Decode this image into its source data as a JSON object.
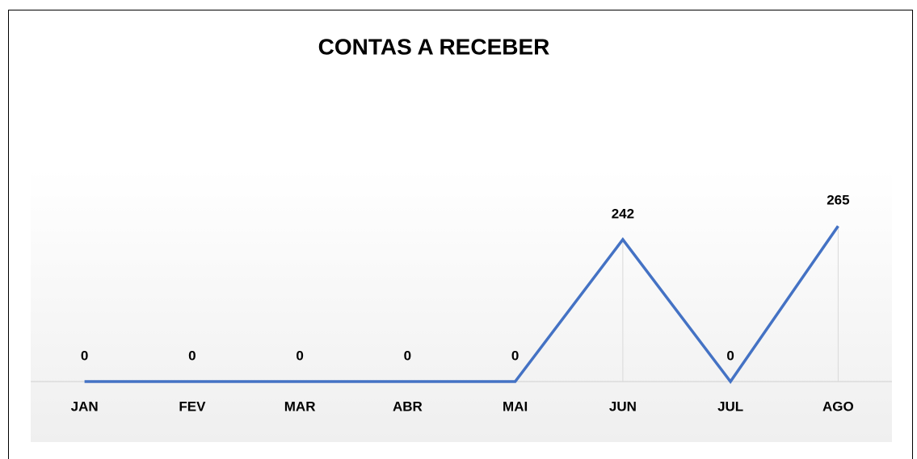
{
  "chart_data": {
    "type": "line",
    "title": "CONTAS A RECEBER",
    "categories": [
      "JAN",
      "FEV",
      "MAR",
      "ABR",
      "MAI",
      "JUN",
      "JUL",
      "AGO"
    ],
    "values": [
      0,
      0,
      0,
      0,
      0,
      242,
      0,
      265
    ],
    "color": "#4472c4"
  }
}
